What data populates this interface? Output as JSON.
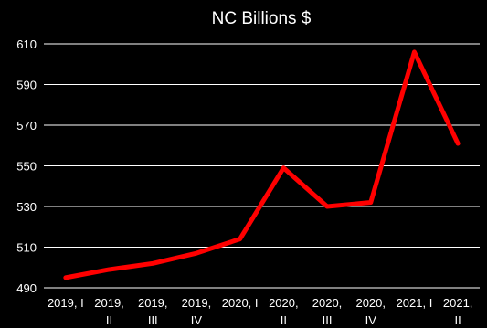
{
  "chart_data": {
    "type": "line",
    "title": "NC Billions $",
    "xlabel": "",
    "ylabel": "",
    "categories": [
      [
        "2019, I"
      ],
      [
        "2019,",
        "II"
      ],
      [
        "2019,",
        "III"
      ],
      [
        "2019,",
        "IV"
      ],
      [
        "2020, I"
      ],
      [
        "2020,",
        "II"
      ],
      [
        "2020,",
        "III"
      ],
      [
        "2020,",
        "IV"
      ],
      [
        "2021, I"
      ],
      [
        "2021,",
        "II"
      ]
    ],
    "series": [
      {
        "values": [
          495,
          499,
          502,
          507,
          514,
          549,
          530,
          532,
          606,
          561
        ]
      }
    ],
    "yticks": [
      490,
      510,
      530,
      550,
      570,
      590,
      610
    ],
    "ylim": [
      490,
      610
    ],
    "grid": true,
    "legend": "none"
  },
  "colors": {
    "background": "#000000",
    "line": "#ff0000",
    "grid": "#ffffff",
    "text": "#ffffff"
  }
}
